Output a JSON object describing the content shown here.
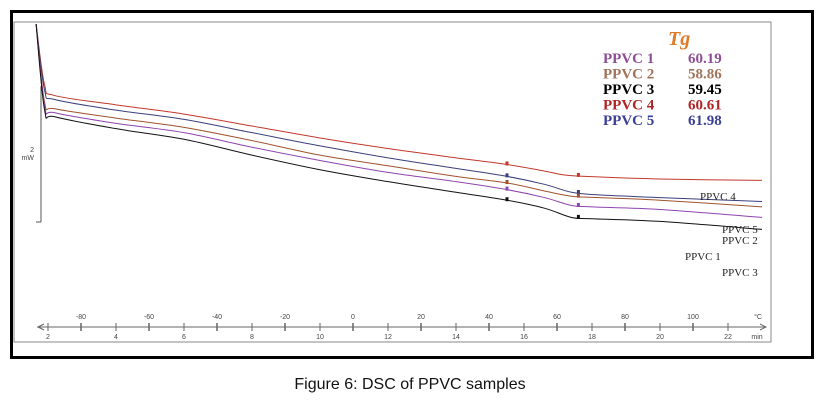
{
  "caption": "Figure 6: DSC of PPVC samples",
  "chart_data": {
    "type": "line",
    "title": "",
    "xlabel_time": "min",
    "xlabel_temp": "°C",
    "ylabel": "2 mW",
    "scale_bar": {
      "value": 2,
      "unit": "mW"
    },
    "time_ticks": [
      2,
      4,
      6,
      8,
      10,
      12,
      14,
      16,
      18,
      20,
      22
    ],
    "temp_ticks": [
      -80,
      -60,
      -40,
      -20,
      0,
      20,
      40,
      60,
      80,
      100
    ],
    "time_range": [
      1.6,
      23.2
    ],
    "legend": {
      "title": "Tg",
      "placement": "top-right",
      "entries": [
        {
          "name": "PPVC 1",
          "tg": "60.19",
          "color": "#8e4e96"
        },
        {
          "name": "PPVC 2",
          "tg": "58.86",
          "color": "#a0745a"
        },
        {
          "name": "PPVC 3",
          "tg": "59.45",
          "color": "#000000"
        },
        {
          "name": "PPVC 4",
          "tg": "60.61",
          "color": "#b22424"
        },
        {
          "name": "PPVC 5",
          "tg": "61.98",
          "color": "#3a3f96"
        }
      ],
      "title_color": "#e07b2a"
    },
    "series": [
      {
        "name": "PPVC 4",
        "color": "#c0392b",
        "label": "PPVC 4",
        "x": [
          1.65,
          1.9,
          2.2,
          4,
          6,
          8,
          10,
          12,
          14,
          15.5,
          16.6,
          17.2,
          17.8,
          20,
          23
        ],
        "y": [
          0,
          -2.3,
          -2.7,
          -3.05,
          -3.4,
          -3.85,
          -4.3,
          -4.7,
          -5.05,
          -5.3,
          -5.55,
          -5.7,
          -5.75,
          -5.85,
          -5.9
        ]
      },
      {
        "name": "PPVC 5",
        "color": "#3a3f7a",
        "label": "PPVC 5",
        "x": [
          1.65,
          1.9,
          2.2,
          4,
          6,
          8,
          10,
          12,
          14,
          15.5,
          16.6,
          17.4,
          18.2,
          20,
          23
        ],
        "y": [
          0,
          -2.5,
          -2.85,
          -3.25,
          -3.6,
          -4.1,
          -4.6,
          -5.05,
          -5.45,
          -5.75,
          -6.05,
          -6.35,
          -6.45,
          -6.55,
          -6.7
        ]
      },
      {
        "name": "PPVC 2",
        "color": "#a0522d",
        "label": "PPVC 2",
        "x": [
          1.65,
          1.9,
          2.2,
          4,
          6,
          8,
          10,
          12,
          14,
          15.5,
          16.6,
          17.4,
          18.2,
          20,
          23
        ],
        "y": [
          0,
          -2.95,
          -3.2,
          -3.55,
          -3.9,
          -4.4,
          -4.95,
          -5.35,
          -5.75,
          -6.0,
          -6.3,
          -6.5,
          -6.55,
          -6.65,
          -6.9
        ]
      },
      {
        "name": "PPVC 1",
        "color": "#8e44ad",
        "label": "PPVC 1",
        "x": [
          1.65,
          1.9,
          2.2,
          4,
          6,
          8,
          10,
          12,
          14,
          15.5,
          16.6,
          17.4,
          18,
          20,
          23
        ],
        "y": [
          0,
          -3.1,
          -3.35,
          -3.75,
          -4.1,
          -4.65,
          -5.15,
          -5.6,
          -5.95,
          -6.25,
          -6.55,
          -6.85,
          -6.9,
          -7.0,
          -7.3
        ]
      },
      {
        "name": "PPVC 3",
        "color": "#111111",
        "label": "PPVC 3",
        "x": [
          1.65,
          1.9,
          2.2,
          4,
          6,
          8,
          10,
          12,
          14,
          15.5,
          16.6,
          17.4,
          18,
          20,
          23
        ],
        "y": [
          0,
          -3.25,
          -3.5,
          -3.95,
          -4.35,
          -4.95,
          -5.5,
          -5.95,
          -6.35,
          -6.65,
          -6.95,
          -7.3,
          -7.35,
          -7.45,
          -7.75
        ]
      }
    ]
  }
}
